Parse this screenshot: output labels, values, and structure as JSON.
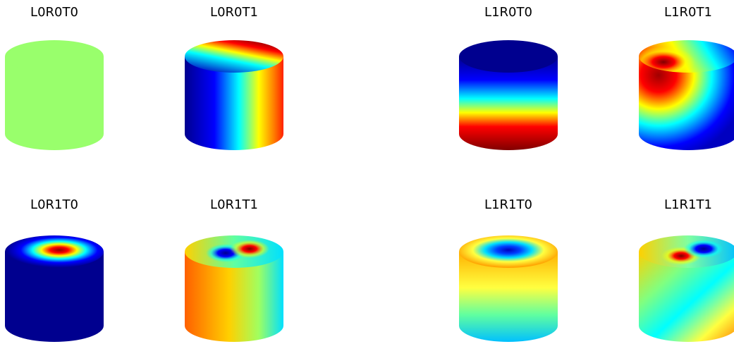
{
  "panels": [
    {
      "label": "L0R0T0"
    },
    {
      "label": "L0R0T1"
    },
    {
      "label": "L1R0T0"
    },
    {
      "label": "L1R0T1"
    },
    {
      "label": "L0R1T0"
    },
    {
      "label": "L0R1T1"
    },
    {
      "label": "L1R1T0"
    },
    {
      "label": "L1R1T1"
    }
  ]
}
